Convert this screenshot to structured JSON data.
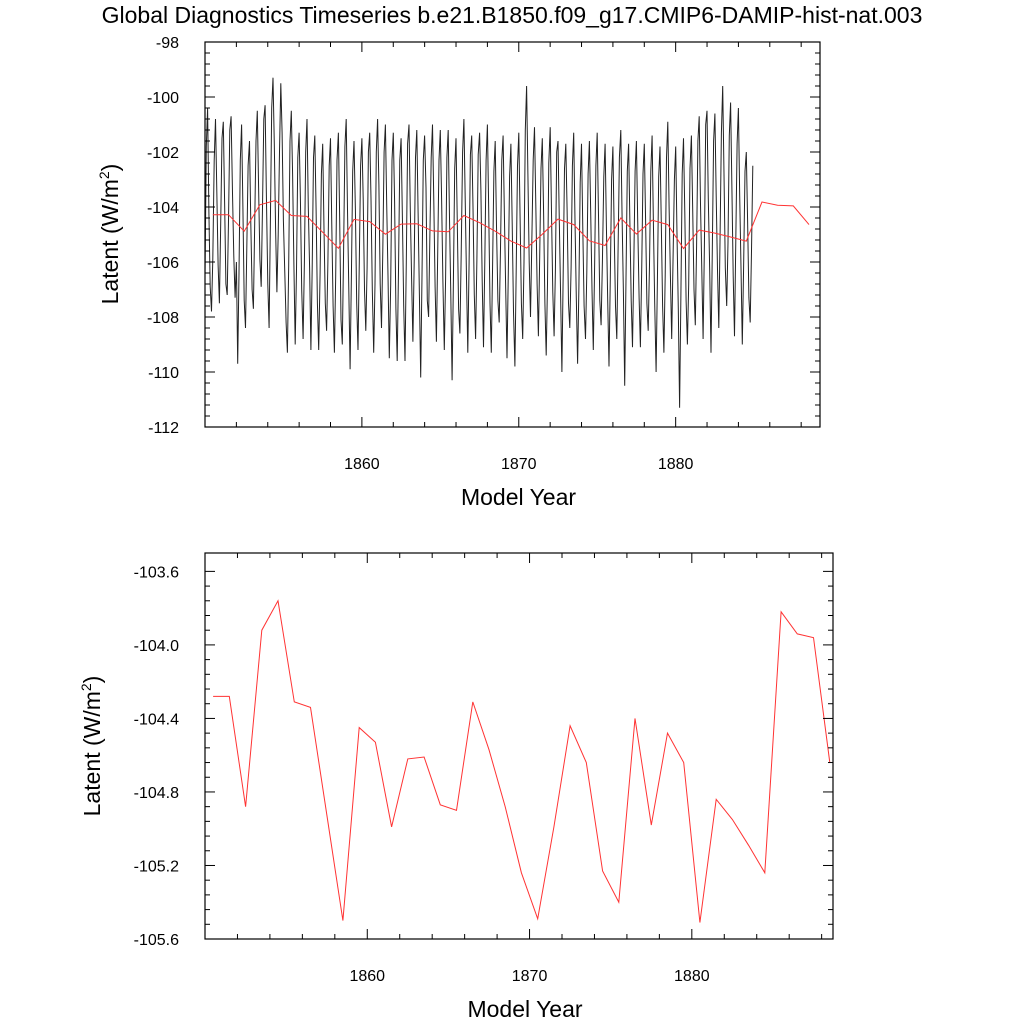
{
  "page": {
    "title": "Global Diagnostics Timeseries b.e21.B1850.f09_g17.CMIP6-DAMIP-hist-nat.003"
  },
  "colors": {
    "monthly_line": "#222222",
    "annual_line": "#ff3333",
    "axis": "#000000"
  },
  "chart_data": [
    {
      "type": "line",
      "title": "Global Diagnostics Timeseries b.e21.B1850.f09_g17.CMIP6-DAMIP-hist-nat.003",
      "xlabel": "Model Year",
      "ylabel": "Latent (W/m²)",
      "ylabel_main": "Latent (W/m",
      "ylabel_sup": "2",
      "ylabel_close": ")",
      "xlim": [
        1850,
        1889.2
      ],
      "ylim": [
        -112,
        -98
      ],
      "x_ticks": [
        1860,
        1870,
        1880
      ],
      "x_tick_labels": [
        "1860",
        "1870",
        "1880"
      ],
      "y_ticks": [
        -112,
        -110,
        -108,
        -106,
        -104,
        -102,
        -100,
        -98
      ],
      "y_tick_labels": [
        "-112",
        "-110",
        "-108",
        "-106",
        "-104",
        "-102",
        "-100",
        "-98"
      ],
      "grid": false,
      "series": [
        {
          "name": "",
          "color": "#222222",
          "x_start": 1850.0,
          "x_step": 0.0833333,
          "values": [
            -106.5,
            -101.8,
            -100.4,
            -104.2,
            -106.9,
            -107.8,
            -105.9,
            -102.3,
            -100.8,
            -103.4,
            -106.1,
            -107.5,
            -104.6,
            -101.5,
            -100.9,
            -103.8,
            -106.8,
            -107.2,
            -104.5,
            -101.2,
            -100.7,
            -103.5,
            -105.8,
            -107.3,
            -106.0,
            -109.7,
            -106.4,
            -102.3,
            -101.0,
            -104.0,
            -107.4,
            -108.4,
            -105.5,
            -102.5,
            -101.6,
            -104.6,
            -107.0,
            -107.7,
            -104.6,
            -101.6,
            -100.5,
            -103.3,
            -105.9,
            -106.9,
            -104.0,
            -100.8,
            -100.3,
            -103.6,
            -106.8,
            -108.4,
            -104.5,
            -100.4,
            -99.3,
            -101.7,
            -104.8,
            -107.1,
            -105.0,
            -102.0,
            -99.5,
            -101.3,
            -104.5,
            -106.4,
            -108.2,
            -109.3,
            -106.1,
            -101.6,
            -100.5,
            -102.8,
            -106.1,
            -109.0,
            -106.3,
            -102.2,
            -101.3,
            -103.7,
            -107.0,
            -108.8,
            -106.0,
            -102.0,
            -100.8,
            -104.0,
            -106.2,
            -109.2,
            -106.2,
            -102.2,
            -101.4,
            -104.1,
            -107.5,
            -109.2,
            -106.4,
            -102.8,
            -101.7,
            -104.8,
            -107.5,
            -108.5,
            -106.0,
            -102.5,
            -101.5,
            -104.7,
            -107.6,
            -109.3,
            -106.5,
            -102.3,
            -101.3,
            -104.5,
            -108.1,
            -109.0,
            -105.6,
            -101.8,
            -100.8,
            -104.1,
            -107.0,
            -109.9,
            -106.5,
            -102.7,
            -101.6,
            -104.1,
            -107.5,
            -109.2,
            -106.0,
            -102.5,
            -101.5,
            -103.7,
            -107.0,
            -108.5,
            -106.2,
            -102.0,
            -101.3,
            -103.7,
            -107.0,
            -109.3,
            -106.8,
            -102.0,
            -100.8,
            -103.2,
            -106.8,
            -108.4,
            -105.6,
            -102.0,
            -101.0,
            -103.9,
            -106.5,
            -109.5,
            -106.8,
            -102.3,
            -101.3,
            -103.8,
            -107.7,
            -109.6,
            -106.3,
            -102.3,
            -101.5,
            -104.4,
            -107.6,
            -109.6,
            -106.0,
            -101.7,
            -101.0,
            -104.1,
            -106.6,
            -108.9,
            -106.0,
            -102.2,
            -101.2,
            -104.2,
            -107.2,
            -110.2,
            -106.5,
            -102.3,
            -101.4,
            -103.3,
            -107.4,
            -108.0,
            -105.0,
            -102.2,
            -101.0,
            -103.8,
            -106.9,
            -108.9,
            -105.7,
            -102.3,
            -101.2,
            -103.7,
            -106.7,
            -109.2,
            -106.6,
            -102.2,
            -101.2,
            -104.4,
            -107.2,
            -110.3,
            -106.7,
            -102.6,
            -101.5,
            -104.6,
            -107.7,
            -108.6,
            -105.7,
            -102.0,
            -100.8,
            -103.7,
            -106.6,
            -109.3,
            -106.0,
            -102.1,
            -101.4,
            -104.0,
            -107.2,
            -108.8,
            -105.9,
            -102.1,
            -101.3,
            -103.4,
            -106.7,
            -109.1,
            -106.0,
            -102.3,
            -101.0,
            -104.1,
            -107.5,
            -109.3,
            -106.1,
            -102.7,
            -101.6,
            -104.7,
            -107.4,
            -108.2,
            -105.5,
            -102.3,
            -101.4,
            -104.3,
            -107.0,
            -109.5,
            -106.4,
            -102.9,
            -101.7,
            -104.6,
            -107.8,
            -109.8,
            -106.3,
            -102.5,
            -101.3,
            -104.4,
            -107.5,
            -108.8,
            -106.0,
            -101.2,
            -99.6,
            -102.8,
            -106.0,
            -108.0,
            -105.3,
            -102.3,
            -101.1,
            -103.9,
            -106.8,
            -108.7,
            -105.8,
            -102.6,
            -101.5,
            -104.2,
            -107.5,
            -109.4,
            -106.8,
            -102.4,
            -101.1,
            -104.2,
            -107.1,
            -108.7,
            -106.3,
            -102.0,
            -101.6,
            -104.5,
            -107.2,
            -110.0,
            -106.4,
            -102.6,
            -101.7,
            -104.1,
            -107.5,
            -108.4,
            -106.2,
            -102.5,
            -101.3,
            -104.5,
            -107.3,
            -109.7,
            -106.9,
            -103.1,
            -101.7,
            -104.8,
            -107.6,
            -108.8,
            -106.4,
            -102.8,
            -101.6,
            -104.2,
            -107.0,
            -109.2,
            -106.2,
            -102.5,
            -101.3,
            -104.3,
            -107.4,
            -108.3,
            -106.0,
            -102.9,
            -101.7,
            -104.7,
            -107.4,
            -109.8,
            -106.6,
            -103.0,
            -101.8,
            -104.9,
            -107.6,
            -108.8,
            -105.5,
            -102.2,
            -101.2,
            -104.4,
            -107.1,
            -110.5,
            -106.6,
            -102.7,
            -101.7,
            -104.6,
            -107.4,
            -109.1,
            -106.1,
            -102.7,
            -101.6,
            -104.5,
            -107.3,
            -109.1,
            -106.3,
            -102.8,
            -101.7,
            -104.5,
            -107.5,
            -108.5,
            -106.1,
            -102.7,
            -101.4,
            -104.6,
            -107.5,
            -110.0,
            -106.7,
            -102.9,
            -101.8,
            -104.6,
            -107.6,
            -109.3,
            -106.5,
            -102.2,
            -100.9,
            -104.0,
            -106.5,
            -108.8,
            -106.0,
            -103.0,
            -101.8,
            -105.0,
            -107.7,
            -111.3,
            -107.2,
            -102.8,
            -101.5,
            -104.2,
            -107.4,
            -109.0,
            -106.8,
            -102.6,
            -101.4,
            -104.1,
            -107.0,
            -108.3,
            -105.4,
            -101.6,
            -100.7,
            -103.9,
            -106.3,
            -108.8,
            -105.4,
            -101.0,
            -100.5,
            -103.7,
            -106.3,
            -109.3,
            -105.6,
            -101.6,
            -100.6,
            -103.6,
            -106.3,
            -108.4,
            -105.0,
            -101.3,
            -99.6,
            -102.8,
            -106.2,
            -107.6,
            -105.3,
            -101.4,
            -100.2,
            -103.3,
            -106.5,
            -108.7,
            -105.2,
            -101.7,
            -100.4,
            -103.6,
            -106.2,
            -109.0,
            -106.2,
            -102.7,
            -102.0,
            -104.5,
            -107.3,
            -108.2,
            -105.6,
            -102.5
          ]
        },
        {
          "name": "",
          "color": "#ff3333",
          "x_start": 1850.5,
          "x_step": 1.0,
          "values": [
            -104.28,
            -104.28,
            -104.88,
            -103.92,
            -103.76,
            -104.31,
            -104.34,
            -104.92,
            -105.5,
            -104.45,
            -104.53,
            -104.99,
            -104.62,
            -104.61,
            -104.87,
            -104.9,
            -104.31,
            -104.57,
            -104.88,
            -105.24,
            -105.49,
            -104.99,
            -104.44,
            -104.64,
            -105.23,
            -105.4,
            -104.4,
            -104.98,
            -104.48,
            -104.64,
            -105.51,
            -104.84,
            -104.95,
            -105.09,
            -105.24,
            -103.82,
            -103.94,
            -103.96,
            -104.64
          ]
        }
      ]
    },
    {
      "type": "line",
      "xlabel": "Model Year",
      "ylabel": "Latent (W/m²)",
      "ylabel_main": "Latent (W/m",
      "ylabel_sup": "2",
      "ylabel_close": ")",
      "xlim": [
        1850,
        1888.7
      ],
      "ylim": [
        -105.6,
        -103.5
      ],
      "x_ticks": [
        1860,
        1870,
        1880
      ],
      "x_tick_labels": [
        "1860",
        "1870",
        "1880"
      ],
      "y_ticks": [
        -105.6,
        -105.2,
        -104.8,
        -104.4,
        -104.0,
        -103.6
      ],
      "y_tick_labels": [
        "-105.6",
        "-105.2",
        "-104.8",
        "-104.4",
        "-104.0",
        "-103.6"
      ],
      "grid": false,
      "series": [
        {
          "name": "",
          "color": "#ff3333",
          "x_start": 1850.5,
          "x_step": 1.0,
          "values": [
            -104.28,
            -104.28,
            -104.88,
            -103.92,
            -103.76,
            -104.31,
            -104.34,
            -104.92,
            -105.5,
            -104.45,
            -104.53,
            -104.99,
            -104.62,
            -104.61,
            -104.87,
            -104.9,
            -104.31,
            -104.57,
            -104.88,
            -105.24,
            -105.49,
            -104.99,
            -104.44,
            -104.64,
            -105.23,
            -105.4,
            -104.4,
            -104.98,
            -104.48,
            -104.64,
            -105.51,
            -104.84,
            -104.95,
            -105.09,
            -105.24,
            -103.82,
            -103.94,
            -103.96,
            -104.64
          ]
        }
      ]
    }
  ]
}
